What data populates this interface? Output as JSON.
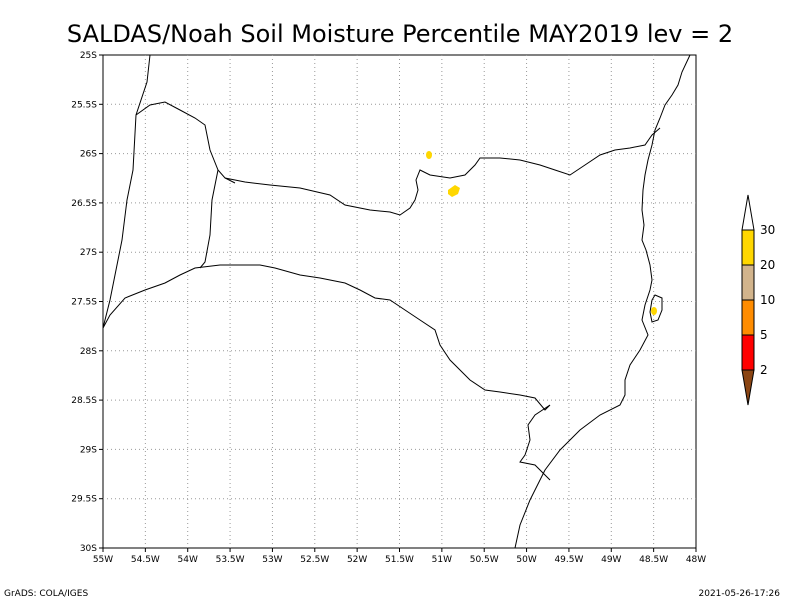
{
  "title": "SALDAS/Noah Soil Moisture Percentile MAY2019 lev = 2",
  "footer": {
    "left": "GrADS: COLA/IGES",
    "right": "2021-05-26-17:26"
  },
  "map": {
    "lon_range": [
      -55,
      -48
    ],
    "lat_range": [
      -30,
      -25
    ],
    "x_tick_labels": [
      "55W",
      "54.5W",
      "54W",
      "53.5W",
      "53W",
      "52.5W",
      "52W",
      "51.5W",
      "51W",
      "50.5W",
      "50W",
      "49.5W",
      "49W",
      "48.5W",
      "48W"
    ],
    "y_tick_labels": [
      "25S",
      "25.5S",
      "26S",
      "26.5S",
      "27S",
      "27.5S",
      "28S",
      "28.5S",
      "29S",
      "29.5S",
      "30S"
    ],
    "grid": true,
    "boundary_color": "#000000",
    "grid_color": "#999999"
  },
  "colorbar": {
    "placement": "right",
    "levels": [
      "2",
      "5",
      "10",
      "20",
      "30"
    ],
    "colors": [
      "#8b4513",
      "#ff0000",
      "#ff8c00",
      "#d2b48c",
      "#ffd700",
      "#ffffff"
    ]
  },
  "features": [
    {
      "name": "yellow-patch-1",
      "color": "#ffd700"
    },
    {
      "name": "yellow-patch-2",
      "color": "#ffd700"
    },
    {
      "name": "yellow-patch-3",
      "color": "#ffd700"
    }
  ]
}
